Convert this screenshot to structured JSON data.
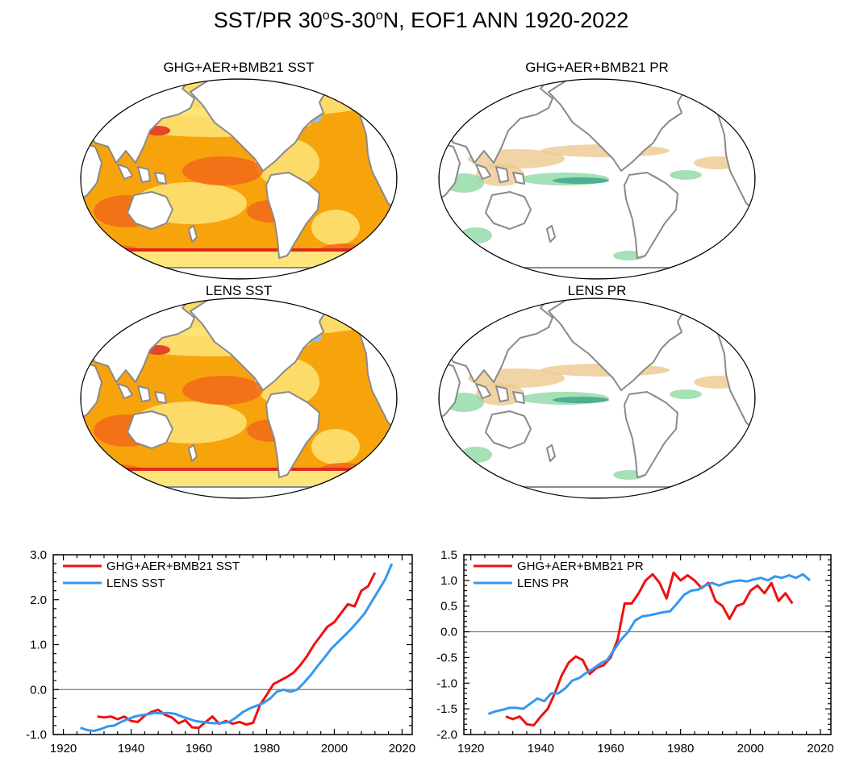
{
  "title": {
    "main": "SST/PR 30",
    "deg1": "o",
    "s_mid": "S-30",
    "deg2": "o",
    "tail": "N, EOF1 ANN 1920-2022"
  },
  "maps": [
    {
      "title": "GHG+AER+BMB21 SST",
      "kind": "sst"
    },
    {
      "title": "GHG+AER+BMB21 PR",
      "kind": "pr"
    },
    {
      "title": "LENS SST",
      "kind": "sst"
    },
    {
      "title": "LENS PR",
      "kind": "pr"
    }
  ],
  "colors": {
    "ghg": "#ee1111",
    "lens": "#3399ee",
    "sst_base": "#f7a30c",
    "sst_light": "#fde57a",
    "sst_warm": "#f2691a",
    "sst_hot": "#e02a1f",
    "sst_cold": "#88c6ec",
    "pr_wet": "#8fd8a4",
    "pr_wet_dark": "#3aa38d",
    "pr_dry": "#ecc98f",
    "coast": "#8a8a8a"
  },
  "chart_data": [
    {
      "type": "line",
      "x_ticks": [
        1920,
        1940,
        1960,
        1980,
        2000,
        2020
      ],
      "y_ticks": [
        "-1.0",
        "0.0",
        "1.0",
        "2.0",
        "3.0"
      ],
      "y_tick_values": [
        -1,
        0,
        1,
        2,
        3
      ],
      "xlim": [
        1917,
        2023
      ],
      "ylim": [
        -1.0,
        3.0
      ],
      "series": [
        {
          "name": "GHG+AER+BMB21 SST",
          "color_key": "ghg",
          "x": [
            1930,
            1932,
            1934,
            1936,
            1938,
            1940,
            1942,
            1944,
            1946,
            1948,
            1950,
            1952,
            1954,
            1956,
            1958,
            1960,
            1962,
            1964,
            1966,
            1968,
            1970,
            1972,
            1974,
            1976,
            1978,
            1980,
            1982,
            1984,
            1986,
            1988,
            1990,
            1992,
            1994,
            1996,
            1998,
            2000,
            2002,
            2004,
            2006,
            2008,
            2010,
            2012
          ],
          "y": [
            -0.6,
            -0.62,
            -0.6,
            -0.66,
            -0.6,
            -0.7,
            -0.72,
            -0.58,
            -0.5,
            -0.45,
            -0.56,
            -0.62,
            -0.75,
            -0.68,
            -0.84,
            -0.85,
            -0.72,
            -0.6,
            -0.76,
            -0.7,
            -0.76,
            -0.72,
            -0.78,
            -0.74,
            -0.35,
            -0.12,
            0.12,
            0.2,
            0.28,
            0.38,
            0.55,
            0.75,
            1.0,
            1.2,
            1.4,
            1.5,
            1.7,
            1.9,
            1.85,
            2.2,
            2.3,
            2.6
          ]
        },
        {
          "name": "LENS SST",
          "color_key": "lens",
          "x": [
            1925,
            1927,
            1929,
            1931,
            1933,
            1935,
            1937,
            1939,
            1941,
            1943,
            1945,
            1947,
            1949,
            1951,
            1953,
            1955,
            1957,
            1959,
            1961,
            1963,
            1965,
            1967,
            1969,
            1971,
            1973,
            1975,
            1977,
            1979,
            1981,
            1983,
            1985,
            1987,
            1989,
            1991,
            1993,
            1995,
            1997,
            1999,
            2001,
            2003,
            2005,
            2007,
            2009,
            2011,
            2013,
            2015,
            2017
          ],
          "y": [
            -0.85,
            -0.9,
            -0.92,
            -0.88,
            -0.82,
            -0.8,
            -0.72,
            -0.66,
            -0.6,
            -0.57,
            -0.55,
            -0.52,
            -0.53,
            -0.52,
            -0.54,
            -0.6,
            -0.65,
            -0.7,
            -0.72,
            -0.74,
            -0.75,
            -0.74,
            -0.72,
            -0.62,
            -0.5,
            -0.42,
            -0.36,
            -0.3,
            -0.2,
            -0.05,
            0.0,
            -0.05,
            0.0,
            0.15,
            0.32,
            0.52,
            0.7,
            0.9,
            1.05,
            1.2,
            1.35,
            1.52,
            1.7,
            1.95,
            2.2,
            2.45,
            2.8
          ]
        }
      ],
      "legend": "top-left"
    },
    {
      "type": "line",
      "x_ticks": [
        1920,
        1940,
        1960,
        1980,
        2000,
        2020
      ],
      "y_ticks": [
        "-2.0",
        "-1.5",
        "-1.0",
        "-0.5",
        "0.0",
        "0.5",
        "1.0",
        "1.5"
      ],
      "y_tick_values": [
        -2.0,
        -1.5,
        -1.0,
        -0.5,
        0.0,
        0.5,
        1.0,
        1.5
      ],
      "xlim": [
        1918,
        2023
      ],
      "ylim": [
        -2.0,
        1.5
      ],
      "series": [
        {
          "name": "GHG+AER+BMB21 PR",
          "color_key": "ghg",
          "x": [
            1930,
            1932,
            1934,
            1936,
            1938,
            1940,
            1942,
            1944,
            1946,
            1948,
            1950,
            1952,
            1954,
            1956,
            1958,
            1960,
            1962,
            1964,
            1966,
            1968,
            1970,
            1972,
            1974,
            1976,
            1978,
            1980,
            1982,
            1984,
            1986,
            1988,
            1990,
            1992,
            1994,
            1996,
            1998,
            2000,
            2002,
            2004,
            2006,
            2008,
            2010,
            2012
          ],
          "y": [
            -1.65,
            -1.7,
            -1.65,
            -1.8,
            -1.82,
            -1.65,
            -1.5,
            -1.2,
            -0.85,
            -0.6,
            -0.48,
            -0.55,
            -0.82,
            -0.7,
            -0.65,
            -0.5,
            -0.15,
            0.55,
            0.55,
            0.75,
            1.0,
            1.12,
            0.95,
            0.65,
            1.15,
            1.0,
            1.1,
            1.0,
            0.85,
            0.95,
            0.6,
            0.5,
            0.25,
            0.5,
            0.55,
            0.8,
            0.9,
            0.75,
            0.95,
            0.6,
            0.75,
            0.55
          ]
        },
        {
          "name": "LENS PR",
          "color_key": "lens",
          "x": [
            1925,
            1927,
            1929,
            1931,
            1933,
            1935,
            1937,
            1939,
            1941,
            1943,
            1945,
            1947,
            1949,
            1951,
            1953,
            1955,
            1957,
            1959,
            1961,
            1963,
            1965,
            1967,
            1969,
            1971,
            1973,
            1975,
            1977,
            1979,
            1981,
            1983,
            1985,
            1987,
            1989,
            1991,
            1993,
            1995,
            1997,
            1999,
            2001,
            2003,
            2005,
            2007,
            2009,
            2011,
            2013,
            2015,
            2017
          ],
          "y": [
            -1.6,
            -1.55,
            -1.52,
            -1.48,
            -1.48,
            -1.5,
            -1.4,
            -1.3,
            -1.35,
            -1.2,
            -1.2,
            -1.1,
            -0.95,
            -0.9,
            -0.8,
            -0.72,
            -0.62,
            -0.55,
            -0.35,
            -0.15,
            0.0,
            0.22,
            0.3,
            0.32,
            0.35,
            0.38,
            0.4,
            0.55,
            0.72,
            0.8,
            0.82,
            0.9,
            0.95,
            0.9,
            0.95,
            0.98,
            1.0,
            0.98,
            1.02,
            1.05,
            1.0,
            1.08,
            1.05,
            1.1,
            1.05,
            1.12,
            1.0
          ]
        }
      ],
      "legend": "top-left"
    }
  ]
}
